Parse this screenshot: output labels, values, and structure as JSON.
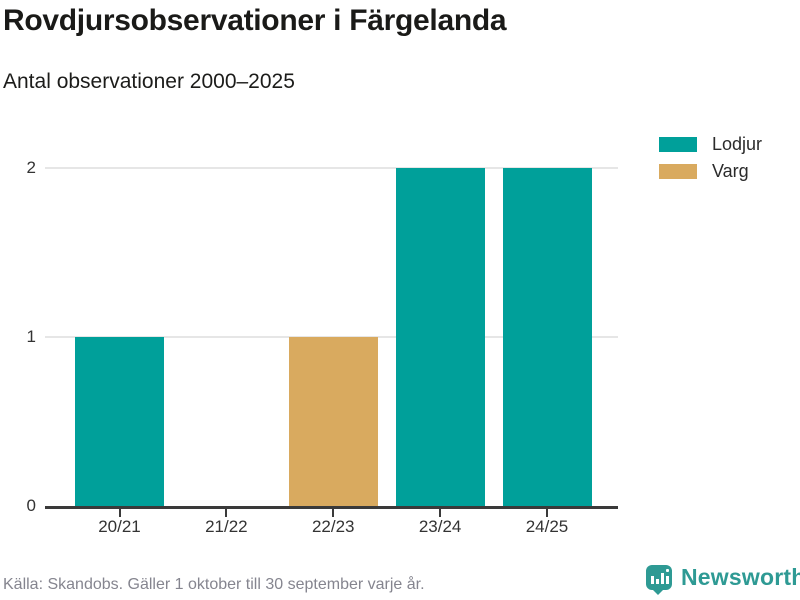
{
  "header": {
    "title": "Rovdjursobservationer i Färgelanda",
    "subtitle": "Antal observationer 2000–2025"
  },
  "chart_data": {
    "type": "bar",
    "title": "Rovdjursobservationer i Färgelanda",
    "subtitle": "Antal observationer 2000–2025",
    "categories": [
      "20/21",
      "21/22",
      "22/23",
      "23/24",
      "24/25"
    ],
    "series": [
      {
        "name": "Lodjur",
        "color": "#00a09a",
        "values": [
          1,
          0,
          0,
          2,
          2
        ]
      },
      {
        "name": "Varg",
        "color": "#d9aa5f",
        "values": [
          0,
          0,
          1,
          0,
          0
        ]
      }
    ],
    "xlabel": "",
    "ylabel": "",
    "ylim": [
      0,
      2
    ],
    "yticks": [
      0,
      1,
      2
    ],
    "grid": "horizontal-only",
    "legend_position": "top-right"
  },
  "footer": {
    "source": "Källa: Skandobs. Gäller 1 oktober till 30 september varje år."
  },
  "branding": {
    "name": "Newsworthy",
    "color": "#2e9a94"
  },
  "style": {
    "axis_color": "#3a3a3a",
    "grid_color": "#e6e6e6",
    "text_color": "#333333"
  }
}
